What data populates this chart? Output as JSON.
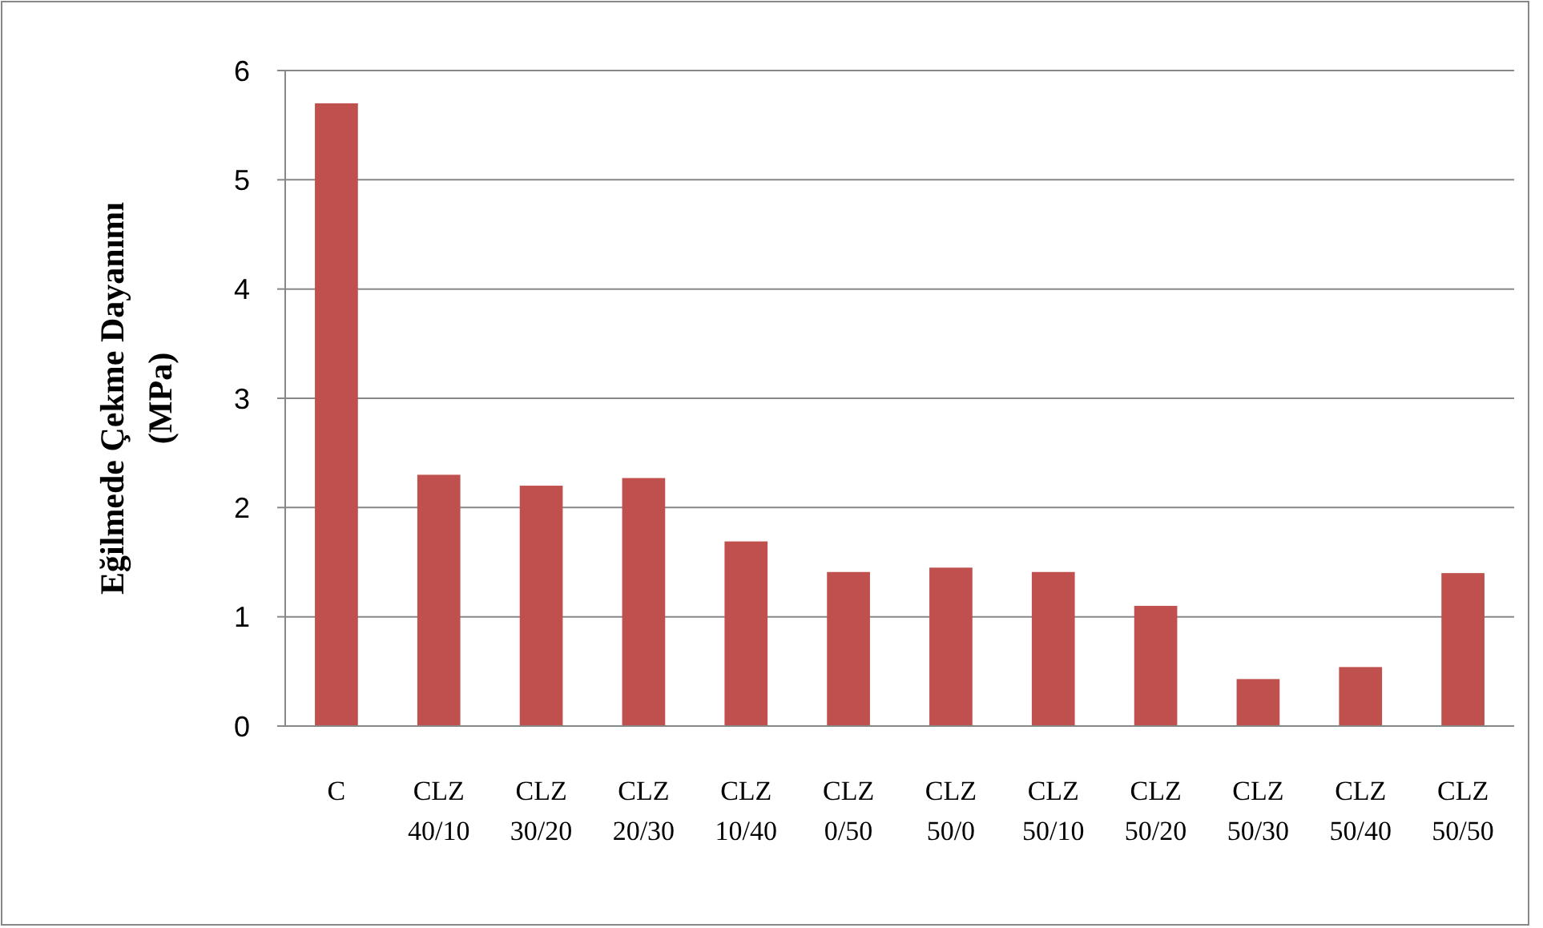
{
  "chart_data": {
    "type": "bar",
    "ylabel": "Eğilmede Çekme  Dayanımı (MPa)",
    "categories": [
      "C",
      "CLZ 40/10",
      "CLZ 30/20",
      "CLZ 20/30",
      "CLZ 10/40",
      "CLZ 0/50",
      "CLZ 50/0",
      "CLZ 50/10",
      "CLZ 50/20",
      "CLZ 50/30",
      "CLZ 50/40",
      "CLZ 50/50"
    ],
    "values": [
      5.7,
      2.3,
      2.2,
      2.27,
      1.69,
      1.41,
      1.45,
      1.41,
      1.1,
      0.43,
      0.54,
      1.4
    ],
    "color": "#c0504d",
    "ylim": [
      0,
      6
    ],
    "yticks": [
      0,
      1,
      2,
      3,
      4,
      5,
      6
    ],
    "grid": "y"
  }
}
